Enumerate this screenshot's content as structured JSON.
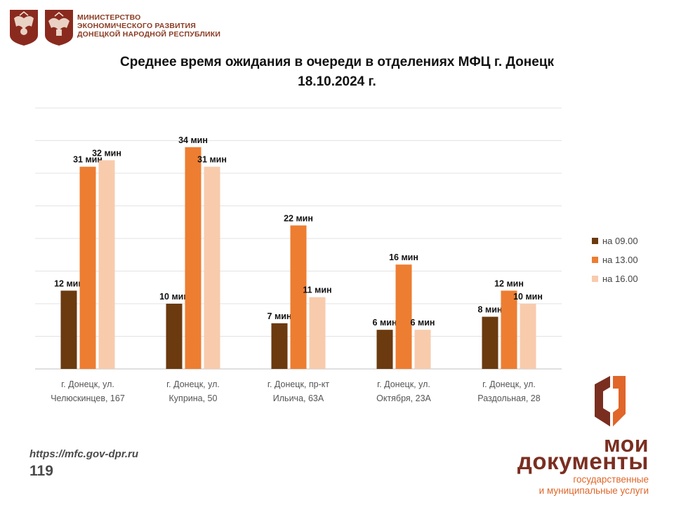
{
  "header": {
    "ministry_lines": [
      "МИНИСТЕРСТВО",
      "ЭКОНОМИЧЕСКОГО РАЗВИТИЯ",
      "ДОНЕЦКОЙ НАРОДНОЙ РЕСПУБЛИКИ"
    ],
    "emblem_icons": [
      "coat-of-arms-icon",
      "coat-of-arms-icon"
    ]
  },
  "chart_data": {
    "type": "bar",
    "title": "Среднее время ожидания в очереди в отделениях МФЦ г. Донецк",
    "subtitle": "18.10.2024 г.",
    "categories": [
      [
        "г. Донецк, ул.",
        "Челюскинцев, 167"
      ],
      [
        "г. Донецк, ул.",
        "Куприна, 50"
      ],
      [
        "г. Донецк, пр-кт",
        "Ильича, 63А"
      ],
      [
        "г. Донецк, ул.",
        "Октября, 23А"
      ],
      [
        "г. Донецк, ул.",
        "Раздольная, 28"
      ]
    ],
    "series": [
      {
        "name": "на 09.00",
        "color": "#6b3a0f",
        "values": [
          12,
          10,
          7,
          6,
          8
        ]
      },
      {
        "name": "на 13.00",
        "color": "#ed7d31",
        "values": [
          31,
          34,
          22,
          16,
          12
        ]
      },
      {
        "name": "на 16.00",
        "color": "#f8cbad",
        "values": [
          32,
          31,
          11,
          6,
          10
        ]
      }
    ],
    "value_suffix": " мин",
    "ylim": [
      0,
      40
    ],
    "grid": true,
    "legend_position": "right"
  },
  "footer": {
    "url": "https://mfc.gov-dpr.ru",
    "hotline": "119"
  },
  "brand": {
    "line1": "мои",
    "line2": "документы",
    "sub_lines": [
      "государственные",
      "и муниципальные услуги"
    ],
    "colors": {
      "dark": "#7a2e20",
      "accent": "#e0662a"
    }
  }
}
